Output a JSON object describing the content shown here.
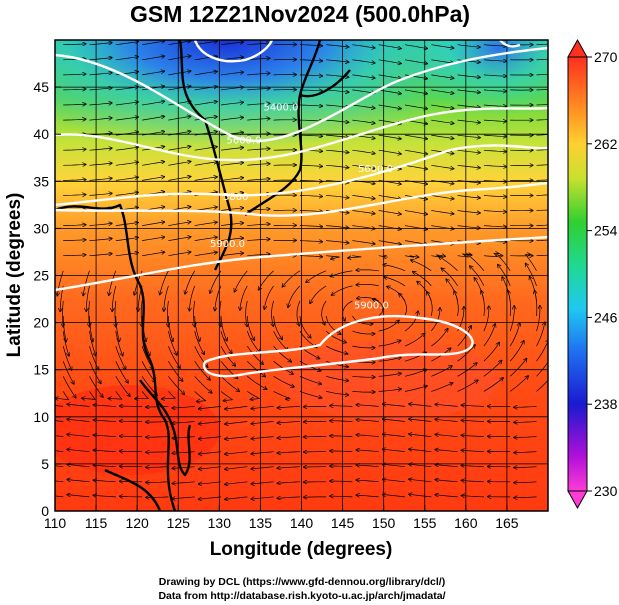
{
  "title": "GSM 12Z21Nov2024 (500.0hPa)",
  "chart_data": {
    "type": "map",
    "xlabel": "Longitude (degrees)",
    "ylabel": "Latitude  (degrees)",
    "xlim": [
      110,
      170
    ],
    "ylim": [
      0,
      50
    ],
    "x_ticks": [
      "110",
      "115",
      "120",
      "125",
      "130",
      "135",
      "140",
      "145",
      "150",
      "155",
      "160",
      "165"
    ],
    "y_ticks": [
      "0",
      "5",
      "10",
      "15",
      "20",
      "25",
      "30",
      "35",
      "40",
      "45"
    ],
    "grid": true,
    "shading_variable": "temperature (K)",
    "colorbar": {
      "ticks": [
        "230",
        "238",
        "246",
        "254",
        "262",
        "270"
      ],
      "range": [
        230,
        270
      ]
    },
    "contour_labels": [
      {
        "text": "5400.0",
        "lon": 137.5,
        "lat": 42.5
      },
      {
        "text": "5600.0",
        "lon": 133,
        "lat": 39
      },
      {
        "text": "5600.0",
        "lon": 149,
        "lat": 36
      },
      {
        "text": "5800",
        "lon": 132,
        "lat": 33
      },
      {
        "text": "5900.0",
        "lon": 131,
        "lat": 28
      },
      {
        "text": "5900.0",
        "lon": 148.5,
        "lat": 21.5
      }
    ]
  },
  "credits": {
    "line1": "Drawing by DCL (https://www.gfd-dennou.org/library/dcl/)",
    "line2": "Data from http://database.rish.kyoto-u.ac.jp/arch/jmadata/"
  }
}
